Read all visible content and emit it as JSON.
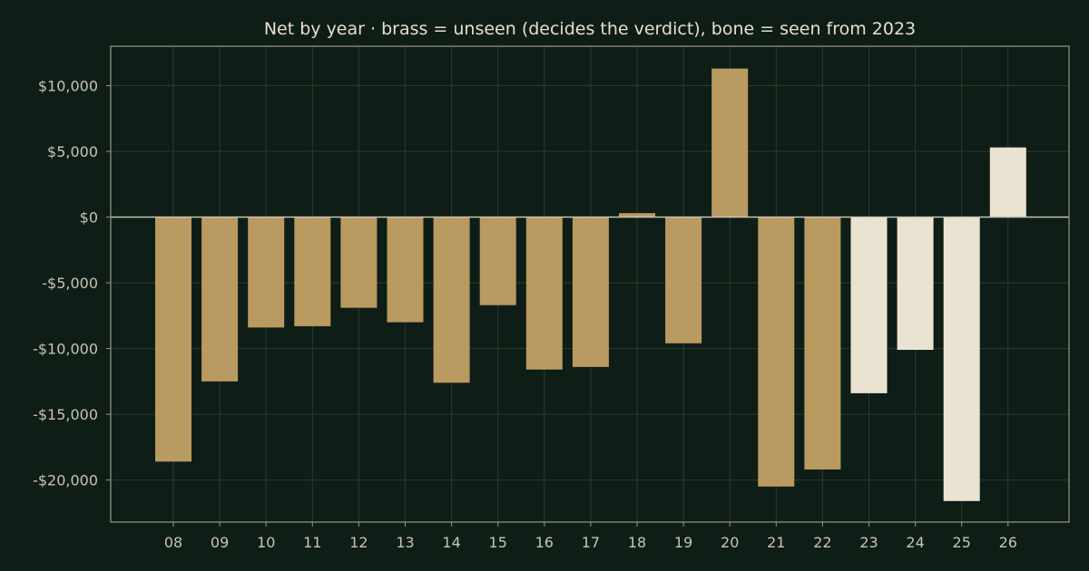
{
  "chart_data": {
    "type": "bar",
    "title": "Net by year  ·  brass = unseen (decides the verdict), bone = seen from 2023",
    "xlabel": "",
    "ylabel": "",
    "ylim": [
      -23200,
      13000
    ],
    "yticks": [
      10000,
      5000,
      0,
      -5000,
      -10000,
      -15000,
      -20000
    ],
    "ytick_labels": [
      "$10,000",
      "$5,000",
      "$0",
      "-$5,000",
      "-$10,000",
      "-$15,000",
      "-$20,000"
    ],
    "categories": [
      "08",
      "09",
      "10",
      "11",
      "12",
      "13",
      "14",
      "15",
      "16",
      "17",
      "18",
      "19",
      "20",
      "21",
      "22",
      "23",
      "24",
      "25",
      "26"
    ],
    "values": [
      -18600,
      -12500,
      -8400,
      -8300,
      -6900,
      -8000,
      -12600,
      -6700,
      -11600,
      -11400,
      300,
      -9600,
      11300,
      -20500,
      -19200,
      -13400,
      -10100,
      -21600,
      5300
    ],
    "groups": [
      "unseen",
      "unseen",
      "unseen",
      "unseen",
      "unseen",
      "unseen",
      "unseen",
      "unseen",
      "unseen",
      "unseen",
      "unseen",
      "unseen",
      "unseen",
      "unseen",
      "unseen",
      "seen",
      "seen",
      "seen",
      "seen"
    ],
    "colors": {
      "unseen": "#b99a61",
      "seen": "#ebe3d1"
    },
    "grid": true,
    "legend": "none"
  }
}
